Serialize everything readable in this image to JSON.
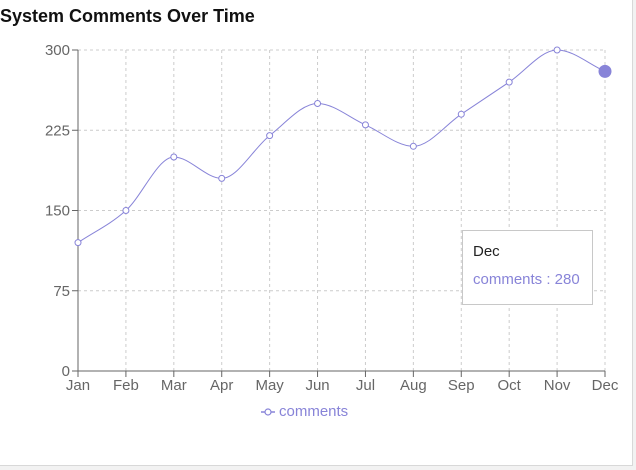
{
  "chart_data": {
    "type": "line",
    "title": "System Comments Over Time",
    "categories": [
      "Jan",
      "Feb",
      "Mar",
      "Apr",
      "May",
      "Jun",
      "Jul",
      "Aug",
      "Sep",
      "Oct",
      "Nov",
      "Dec"
    ],
    "series": [
      {
        "name": "comments",
        "color": "#8884d8",
        "values": [
          120,
          150,
          200,
          180,
          220,
          250,
          230,
          210,
          240,
          270,
          300,
          280
        ]
      }
    ],
    "ylim": [
      0,
      300
    ],
    "yticks": [
      0,
      75,
      150,
      225,
      300
    ],
    "xlabel": "",
    "ylabel": "",
    "grid": true,
    "legend_position": "bottom",
    "active_category": "Dec"
  },
  "tooltip": {
    "label": "Dec",
    "item_text": "comments : 280"
  },
  "legend": {
    "label": "comments",
    "icon": "line-circle-icon"
  },
  "colors": {
    "series": "#8884d8",
    "grid": "#cccccc",
    "axis": "#666666"
  }
}
